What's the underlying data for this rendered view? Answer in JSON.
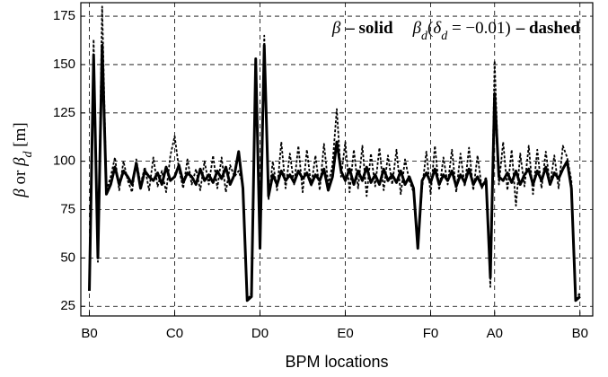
{
  "chart_data": {
    "type": "line",
    "xlabel": "BPM locations",
    "ylabel": "β or βd [m]",
    "x": [
      0,
      1,
      2,
      3,
      4,
      5,
      6,
      7,
      8,
      9,
      10,
      11,
      12,
      13,
      14,
      15,
      16,
      17,
      18,
      19,
      20,
      21,
      22,
      23,
      24,
      25,
      26,
      27,
      28,
      29,
      30,
      31,
      32,
      33,
      34,
      35,
      36,
      37,
      38,
      39,
      40,
      41,
      42,
      43,
      44,
      45,
      46,
      47,
      48,
      49,
      50,
      51,
      52,
      53,
      54,
      55,
      56,
      57,
      58,
      59,
      60,
      61,
      62,
      63,
      64,
      65,
      66,
      67,
      68,
      69,
      70,
      71,
      72,
      73,
      74,
      75,
      76,
      77,
      78,
      79,
      80,
      81,
      82,
      83,
      84,
      85,
      86,
      87,
      88,
      89,
      90,
      91,
      92,
      93,
      94,
      95,
      96,
      97,
      98,
      99,
      100,
      101,
      102,
      103,
      104,
      105,
      106,
      107,
      108,
      109,
      110,
      111,
      112,
      113,
      114,
      115
    ],
    "series": [
      {
        "name": "β",
        "style_label": "– solid",
        "dashed": false,
        "color": "#000000",
        "values": [
          33,
          155,
          50,
          160,
          83,
          88,
          97,
          88,
          95,
          92,
          88,
          99,
          86,
          95,
          92,
          90,
          94,
          88,
          97,
          90,
          92,
          98,
          89,
          94,
          92,
          88,
          96,
          90,
          93,
          89,
          95,
          91,
          97,
          88,
          93,
          105,
          86,
          28,
          30,
          153,
          55,
          160,
          82,
          93,
          88,
          95,
          90,
          93,
          89,
          95,
          91,
          94,
          88,
          93,
          90,
          96,
          85,
          92,
          110,
          95,
          90,
          96,
          88,
          95,
          90,
          97,
          89,
          93,
          88,
          96,
          90,
          93,
          89,
          95,
          88,
          92,
          86,
          55,
          90,
          94,
          89,
          96,
          88,
          93,
          90,
          95,
          87,
          93,
          89,
          96,
          88,
          92,
          87,
          90,
          40,
          135,
          92,
          90,
          94,
          89,
          95,
          88,
          93,
          96,
          88,
          95,
          90,
          97,
          88,
          94,
          91,
          96,
          100,
          86,
          28,
          30
        ]
      },
      {
        "name": "βd(δd = −0.01)",
        "style_label": "– dashed",
        "dashed": true,
        "color": "#000000",
        "values": [
          36,
          163,
          48,
          180,
          85,
          92,
          102,
          85,
          100,
          90,
          84,
          101,
          88,
          97,
          85,
          102,
          87,
          95,
          84,
          103,
          113,
          96,
          86,
          101,
          88,
          96,
          85,
          100,
          88,
          103,
          86,
          102,
          84,
          98,
          92,
          95,
          88,
          28,
          32,
          150,
          60,
          165,
          80,
          100,
          85,
          110,
          86,
          104,
          88,
          108,
          84,
          106,
          87,
          103,
          85,
          109,
          88,
          98,
          127,
          92,
          110,
          84,
          106,
          86,
          108,
          82,
          104,
          87,
          107,
          85,
          103,
          88,
          106,
          83,
          101,
          90,
          84,
          58,
          86,
          105,
          83,
          108,
          85,
          102,
          88,
          106,
          84,
          104,
          87,
          107,
          85,
          103,
          86,
          92,
          35,
          152,
          88,
          110,
          85,
          106,
          77,
          104,
          87,
          108,
          83,
          106,
          86,
          105,
          88,
          103,
          86,
          108,
          102,
          90,
          28,
          32
        ]
      }
    ],
    "xlim": [
      -2,
      118
    ],
    "xticks": [
      {
        "value": 0,
        "label": "B0"
      },
      {
        "value": 20,
        "label": "C0"
      },
      {
        "value": 40,
        "label": "D0"
      },
      {
        "value": 60,
        "label": "E0"
      },
      {
        "value": 80,
        "label": "F0"
      },
      {
        "value": 95,
        "label": "A0"
      },
      {
        "value": 115,
        "label": "B0"
      }
    ],
    "ylim": [
      20,
      182
    ],
    "yticks": [
      25,
      50,
      75,
      100,
      125,
      150,
      175
    ],
    "grid": true
  }
}
